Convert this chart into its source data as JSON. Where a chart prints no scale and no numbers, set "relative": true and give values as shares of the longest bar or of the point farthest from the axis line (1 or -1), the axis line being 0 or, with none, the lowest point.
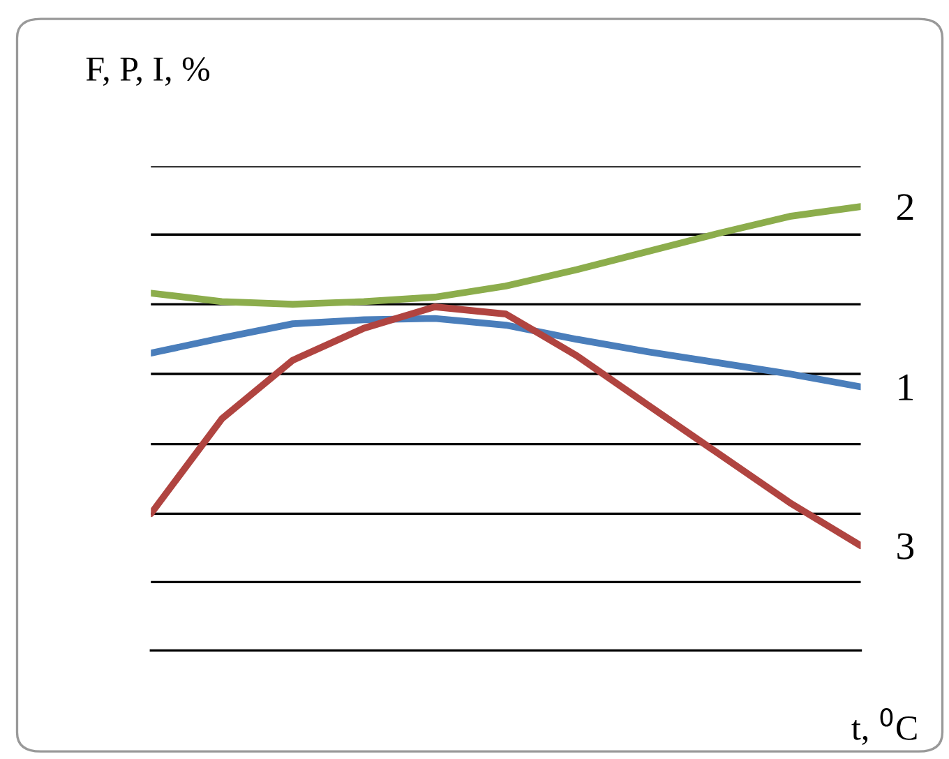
{
  "chart_data": {
    "type": "line",
    "relative": true,
    "ylabel": "F, P, I, %",
    "xlabel": "t, $^{0}$C",
    "categories": [
      null,
      null,
      null,
      null,
      null,
      null,
      null,
      null,
      null,
      null,
      null
    ],
    "series": [
      {
        "name": "2",
        "color": "#8cad4c",
        "values": [
          0.805,
          0.786,
          0.78,
          0.786,
          0.796,
          0.821,
          0.858,
          0.899,
          0.94,
          0.978,
          1
        ]
      },
      {
        "name": "1",
        "color": "#4a7ebb",
        "values": [
          0.67,
          0.704,
          0.736,
          0.745,
          0.748,
          0.733,
          0.701,
          0.673,
          0.648,
          0.623,
          0.594
        ]
      },
      {
        "name": "3",
        "color": "#b04440",
        "values": [
          0.308,
          0.522,
          0.654,
          0.726,
          0.774,
          0.758,
          0.664,
          0.553,
          0.443,
          0.333,
          0.236
        ]
      }
    ],
    "ref_lines": [
      {
        "axis": "y",
        "value": 1.091,
        "color": "#000000"
      },
      {
        "axis": "y",
        "value": 0.937,
        "color": "#000000"
      },
      {
        "axis": "y",
        "value": 0.78,
        "color": "#000000"
      },
      {
        "axis": "y",
        "value": 0.623,
        "color": "#000000"
      },
      {
        "axis": "y",
        "value": 0.465,
        "color": "#000000"
      },
      {
        "axis": "y",
        "value": 0.308,
        "color": "#000000"
      },
      {
        "axis": "y",
        "value": 0.154,
        "color": "#000000"
      }
    ],
    "legend": false,
    "grid": false,
    "marker": "none",
    "line_style": "solid"
  }
}
